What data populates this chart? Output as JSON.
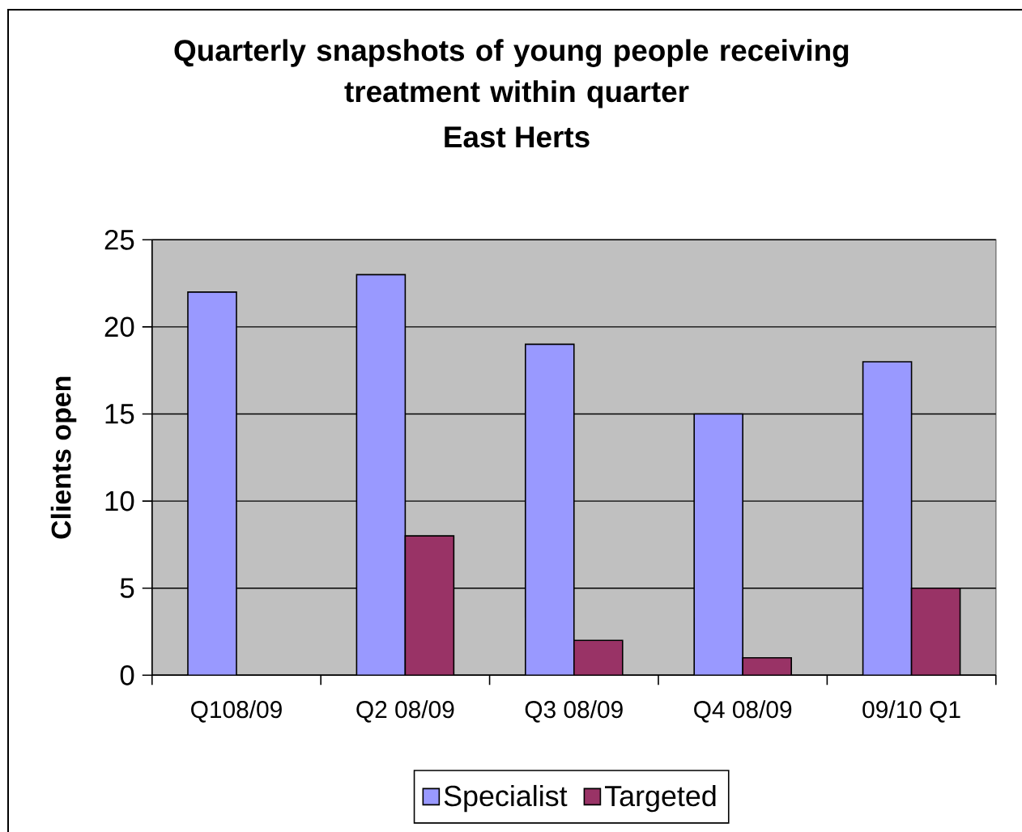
{
  "chart_data": {
    "type": "bar",
    "title": "Quarterly snapshots of young people receiving treatment within quarter",
    "subtitle": "East Herts",
    "ylabel": "Clients open",
    "categories": [
      "Q108/09",
      "Q2 08/09",
      "Q3 08/09",
      "Q4 08/09",
      "09/10 Q1"
    ],
    "series": [
      {
        "name": "Specialist",
        "color": "#9999ff",
        "values": [
          22,
          23,
          19,
          15,
          18
        ]
      },
      {
        "name": "Targeted",
        "color": "#993366",
        "values": [
          null,
          8,
          2,
          1,
          5
        ]
      }
    ],
    "ylim": [
      0,
      25
    ],
    "yticks": [
      0,
      5,
      10,
      15,
      20,
      25
    ],
    "grid": "y",
    "legend": "bottom"
  }
}
